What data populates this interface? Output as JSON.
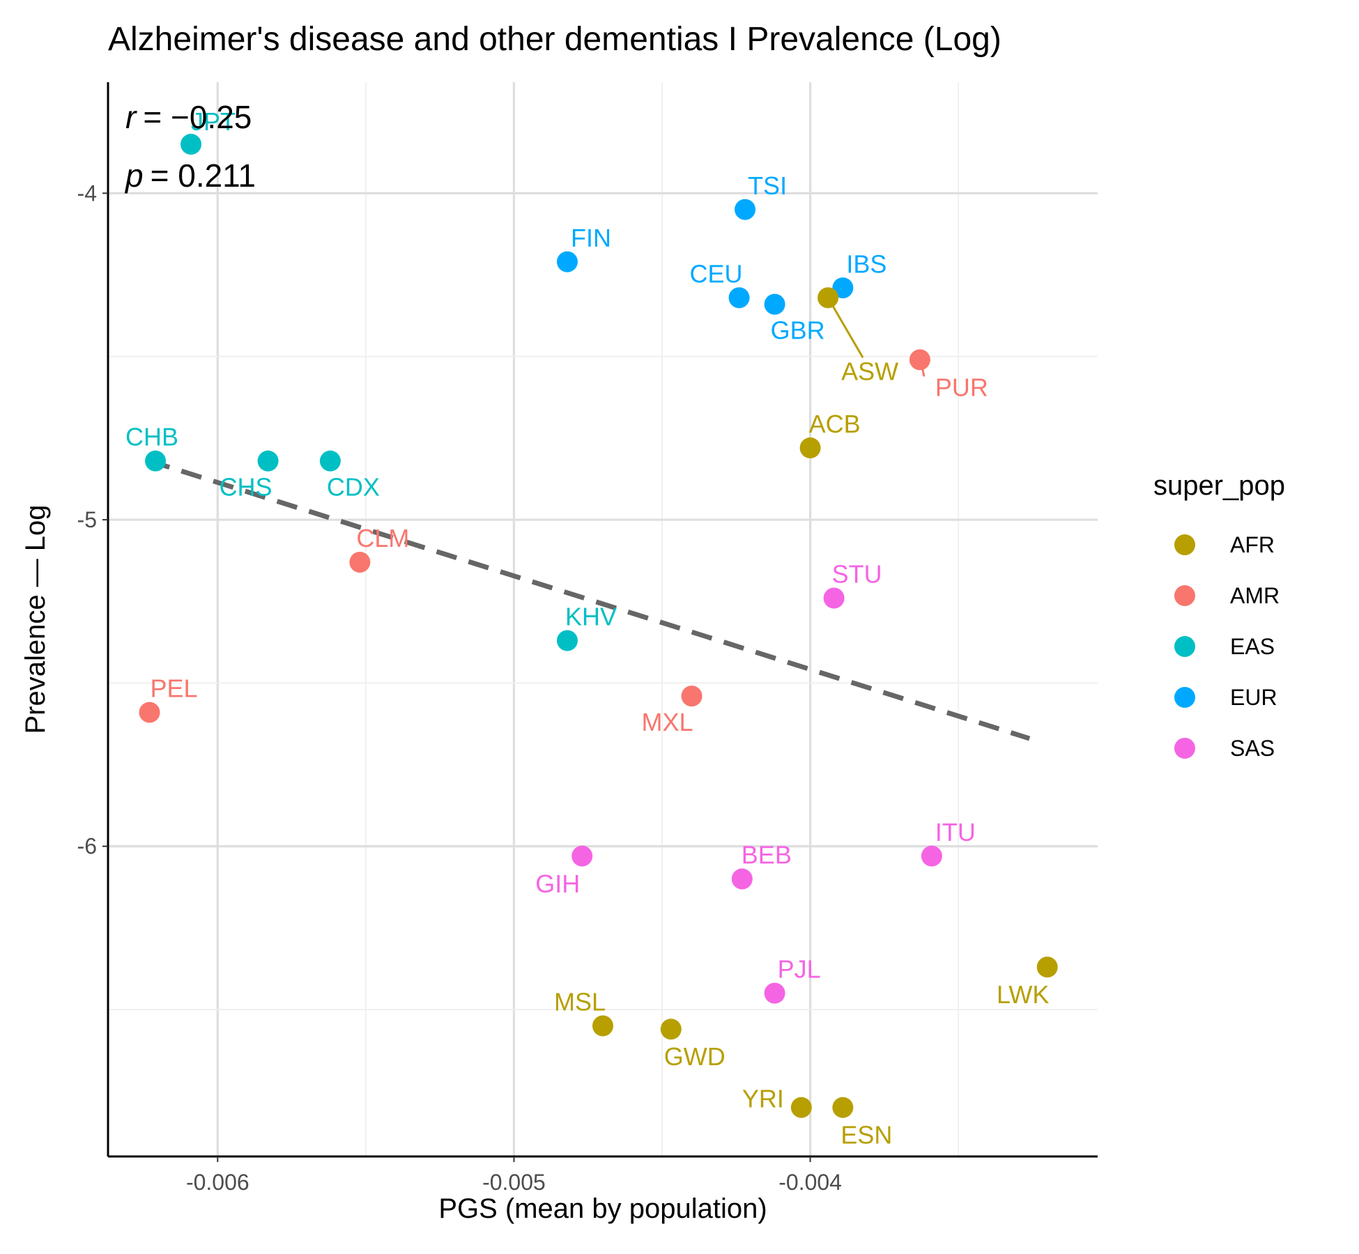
{
  "chart_data": {
    "type": "scatter",
    "title": "Alzheimer's disease and other dementias I Prevalence (Log)",
    "xlabel": "PGS (mean by population)",
    "ylabel": "Prevalence — Log",
    "xlim": [
      -0.00637,
      -0.00303
    ],
    "ylim": [
      -6.95,
      -3.66
    ],
    "x_ticks": [
      -0.006,
      -0.005,
      -0.004
    ],
    "x_tick_labels": [
      "-0.006",
      "-0.005",
      "-0.004"
    ],
    "y_ticks": [
      -4,
      -5,
      -6
    ],
    "y_tick_labels": [
      "-4",
      "-5",
      "-6"
    ],
    "grid": true,
    "legend": {
      "title": "super_pop",
      "position": "right"
    },
    "stats": {
      "r_label": "r",
      "r_value": "= −0.25",
      "p_label": "p",
      "p_value": "= 0.211"
    },
    "groups": [
      {
        "name": "AFR",
        "color": "#B79F00"
      },
      {
        "name": "AMR",
        "color": "#F8766D"
      },
      {
        "name": "EAS",
        "color": "#00BFC4"
      },
      {
        "name": "EUR",
        "color": "#00A9FF"
      },
      {
        "name": "SAS",
        "color": "#F564E3"
      }
    ],
    "points": [
      {
        "label": "JPT",
        "group": "EAS",
        "x": -0.00609,
        "y": -3.85
      },
      {
        "label": "TSI",
        "group": "EUR",
        "x": -0.00422,
        "y": -4.05
      },
      {
        "label": "FIN",
        "group": "EUR",
        "x": -0.00482,
        "y": -4.21
      },
      {
        "label": "IBS",
        "group": "EUR",
        "x": -0.00389,
        "y": -4.29
      },
      {
        "label": "CEU",
        "group": "EUR",
        "x": -0.00424,
        "y": -4.32
      },
      {
        "label": "GBR",
        "group": "EUR",
        "x": -0.00412,
        "y": -4.34
      },
      {
        "label": "ASW",
        "group": "AFR",
        "x": -0.00394,
        "y": -4.32
      },
      {
        "label": "PUR",
        "group": "AMR",
        "x": -0.00363,
        "y": -4.51
      },
      {
        "label": "ACB",
        "group": "AFR",
        "x": -0.004,
        "y": -4.78
      },
      {
        "label": "CHB",
        "group": "EAS",
        "x": -0.00621,
        "y": -4.82
      },
      {
        "label": "CHS",
        "group": "EAS",
        "x": -0.00583,
        "y": -4.82
      },
      {
        "label": "CDX",
        "group": "EAS",
        "x": -0.00562,
        "y": -4.82
      },
      {
        "label": "CLM",
        "group": "AMR",
        "x": -0.00552,
        "y": -5.13
      },
      {
        "label": "STU",
        "group": "SAS",
        "x": -0.00392,
        "y": -5.24
      },
      {
        "label": "KHV",
        "group": "EAS",
        "x": -0.00482,
        "y": -5.37
      },
      {
        "label": "MXL",
        "group": "AMR",
        "x": -0.0044,
        "y": -5.54
      },
      {
        "label": "PEL",
        "group": "AMR",
        "x": -0.00623,
        "y": -5.59
      },
      {
        "label": "GIH",
        "group": "SAS",
        "x": -0.00477,
        "y": -6.03
      },
      {
        "label": "ITU",
        "group": "SAS",
        "x": -0.00359,
        "y": -6.03
      },
      {
        "label": "BEB",
        "group": "SAS",
        "x": -0.00423,
        "y": -6.1
      },
      {
        "label": "LWK",
        "group": "AFR",
        "x": -0.0032,
        "y": -6.37
      },
      {
        "label": "PJL",
        "group": "SAS",
        "x": -0.00412,
        "y": -6.45
      },
      {
        "label": "MSL",
        "group": "AFR",
        "x": -0.0047,
        "y": -6.55
      },
      {
        "label": "GWD",
        "group": "AFR",
        "x": -0.00447,
        "y": -6.56
      },
      {
        "label": "YRI",
        "group": "AFR",
        "x": -0.00403,
        "y": -6.8
      },
      {
        "label": "ESN",
        "group": "AFR",
        "x": -0.00389,
        "y": -6.8
      }
    ],
    "trend_line": {
      "x": [
        -0.00623,
        -0.00326
      ],
      "y": [
        -4.82,
        -5.67
      ],
      "style": "dashed",
      "color": "#666666"
    }
  }
}
